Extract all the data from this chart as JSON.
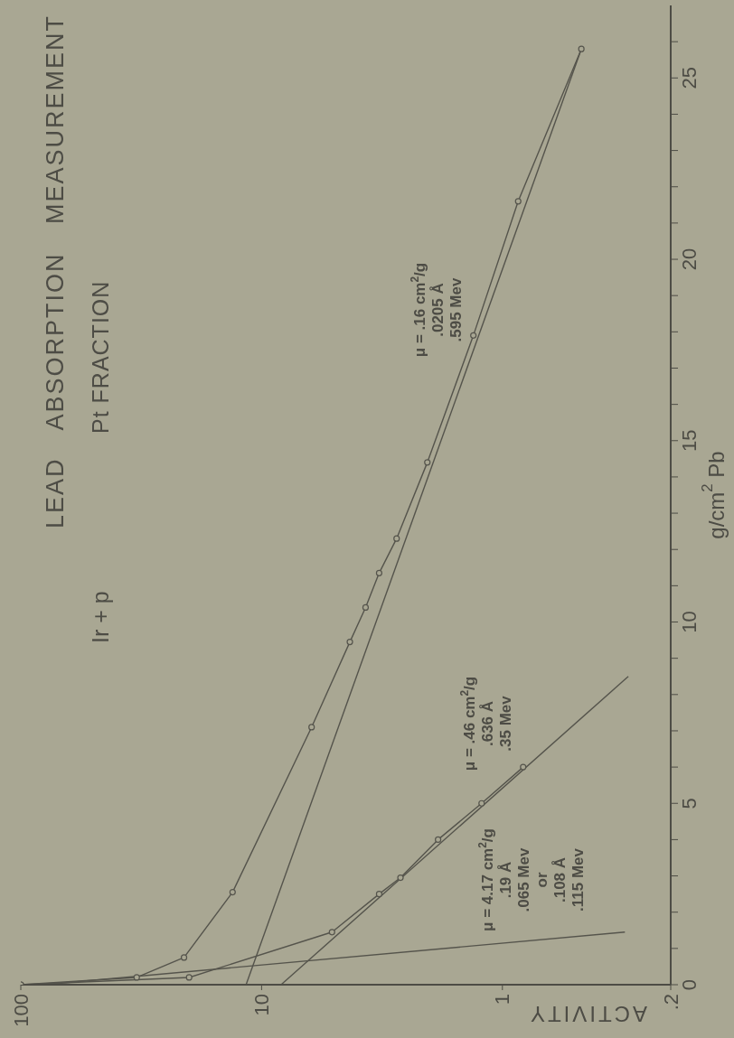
{
  "chart_data": {
    "type": "line",
    "title": "LEAD ABSORPTION MEASUREMENT",
    "subtitle": "Ir + p",
    "xlabel": "ACTIVITY",
    "ylabel": "g/cm$^{2}$ Pb",
    "log": "x",
    "grid": false,
    "xlim": [
      100,
      0.2
    ],
    "xticks": [
      100,
      10,
      1,
      {
        "value": 0.2,
        "label": ".2"
      }
    ],
    "ylim": [
      0,
      27
    ],
    "yticks": [
      0,
      {
        "value": 1,
        "label": null
      },
      {
        "value": 2,
        "label": null
      },
      {
        "value": 3,
        "label": null
      },
      {
        "value": 4,
        "label": null
      },
      5,
      {
        "value": 6,
        "label": null
      },
      {
        "value": 7,
        "label": null
      },
      {
        "value": 8,
        "label": null
      },
      {
        "value": 9,
        "label": null
      },
      10,
      {
        "value": 11,
        "label": null
      },
      {
        "value": 12,
        "label": null
      },
      {
        "value": 13,
        "label": null
      },
      {
        "value": 14,
        "label": null
      },
      15,
      {
        "value": 16,
        "label": null
      },
      {
        "value": 17,
        "label": null
      },
      {
        "value": 18,
        "label": null
      },
      {
        "value": 19,
        "label": null
      },
      20,
      {
        "value": 21,
        "label": null
      },
      {
        "value": 22,
        "label": null
      },
      {
        "value": 23,
        "label": null
      },
      {
        "value": 24,
        "label": null
      },
      25,
      {
        "value": 26,
        "label": null
      }
    ],
    "annotations": [
      "Pt FRACTION",
      "μ = .16 cm$^{2}$/g\n.0205 Å\n.595 Mev",
      "μ = .46 cm$^{2}$/g\n.636 Å\n.35 Mev",
      "μ = 4.17 cm$^{2}$/g\n.19 Å\n.065 Mev\nor\n.108 Å\n.115 Mev"
    ],
    "series": [
      {
        "color": "#55544c",
        "marker": "circle",
        "x": [
          100,
          33,
          21,
          13.2,
          6.2,
          4.3,
          3.7,
          3.25,
          2.75,
          2.05,
          1.32,
          0.86,
          0.47
        ],
        "values": [
          0,
          0.2,
          0.75,
          2.55,
          7.1,
          9.45,
          10.4,
          11.35,
          12.3,
          14.4,
          17.9,
          21.6,
          25.8
        ]
      },
      {
        "color": "#55544c",
        "marker": "none",
        "x": [
          11.6,
          0.47
        ],
        "values": [
          0,
          25.8
        ]
      },
      {
        "color": "#55544c",
        "marker": "circle",
        "x": [
          100,
          20,
          5.1,
          3.25,
          2.65,
          1.85,
          1.22,
          0.82
        ],
        "values": [
          0,
          0.2,
          1.45,
          2.5,
          2.95,
          4,
          5,
          6
        ]
      },
      {
        "color": "#55544c",
        "marker": "none",
        "x": [
          8.3,
          0.3
        ],
        "values": [
          0,
          8.5
        ]
      },
      {
        "color": "#55544c",
        "marker": "none",
        "x": [
          80,
          0.31
        ],
        "values": [
          0,
          1.45
        ]
      }
    ]
  }
}
